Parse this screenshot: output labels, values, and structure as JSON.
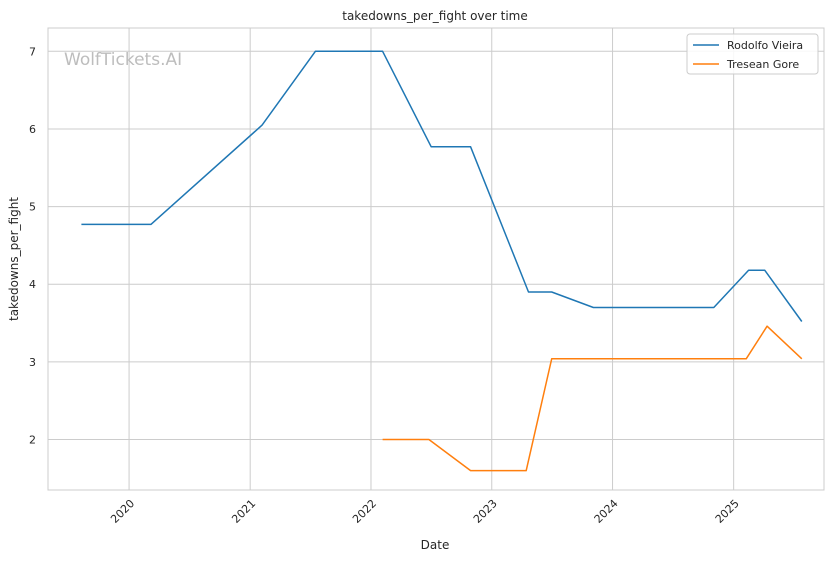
{
  "watermark": "WolfTickets.AI",
  "chart_data": {
    "type": "line",
    "title": "takedowns_per_fight over time",
    "xlabel": "Date",
    "ylabel": "takedowns_per_fight",
    "x_ticks": [
      "2020",
      "2021",
      "2022",
      "2023",
      "2024",
      "2025"
    ],
    "y_ticks": [
      2,
      3,
      4,
      5,
      6,
      7
    ],
    "xlim": [
      "2019-05-01",
      "2025-10-01"
    ],
    "ylim": [
      1.35,
      7.3
    ],
    "grid": true,
    "legend_position": "top-right",
    "series": [
      {
        "name": "Rodolfo Vieira",
        "color": "#1f77b4",
        "points": [
          [
            "2019-08-10",
            4.77
          ],
          [
            "2020-03-07",
            4.77
          ],
          [
            "2021-02-06",
            6.05
          ],
          [
            "2021-07-17",
            7.0
          ],
          [
            "2022-02-05",
            7.0
          ],
          [
            "2022-07-02",
            5.77
          ],
          [
            "2022-10-29",
            5.77
          ],
          [
            "2023-04-22",
            3.9
          ],
          [
            "2023-07-01",
            3.9
          ],
          [
            "2023-11-04",
            3.7
          ],
          [
            "2024-11-02",
            3.7
          ],
          [
            "2025-02-15",
            4.18
          ],
          [
            "2025-04-05",
            4.18
          ],
          [
            "2025-07-26",
            3.52
          ]
        ]
      },
      {
        "name": "Tresean Gore",
        "color": "#ff7f0e",
        "points": [
          [
            "2022-02-05",
            2.0
          ],
          [
            "2022-06-25",
            2.0
          ],
          [
            "2022-10-29",
            1.6
          ],
          [
            "2023-04-15",
            1.6
          ],
          [
            "2023-07-01",
            3.04
          ],
          [
            "2025-02-08",
            3.04
          ],
          [
            "2025-04-12",
            3.46
          ],
          [
            "2025-07-26",
            3.04
          ]
        ]
      }
    ]
  }
}
